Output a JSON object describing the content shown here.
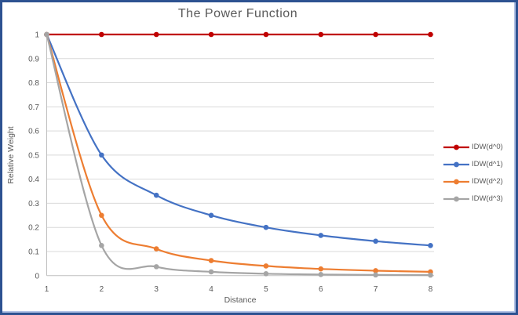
{
  "window": {
    "border_color": "#2d5291",
    "inner_edge_color": "#b3c3e6",
    "background": "#ffffff"
  },
  "chart_data": {
    "type": "line",
    "title": "The Power Function",
    "xlabel": "Distance",
    "ylabel": "Relative Weight",
    "x": [
      1,
      2,
      3,
      4,
      5,
      6,
      7,
      8
    ],
    "xticks": [
      {
        "v": 1,
        "label": "1"
      },
      {
        "v": 2,
        "label": "2"
      },
      {
        "v": 3,
        "label": "3"
      },
      {
        "v": 4,
        "label": "4"
      },
      {
        "v": 5,
        "label": "5"
      },
      {
        "v": 6,
        "label": "6"
      },
      {
        "v": 7,
        "label": "7"
      },
      {
        "v": 8,
        "label": "8"
      }
    ],
    "yticks": [
      {
        "v": 0,
        "label": "0"
      },
      {
        "v": 0.1,
        "label": "0.1"
      },
      {
        "v": 0.2,
        "label": "0.2"
      },
      {
        "v": 0.3,
        "label": "0.3"
      },
      {
        "v": 0.4,
        "label": "0.4"
      },
      {
        "v": 0.5,
        "label": "0.5"
      },
      {
        "v": 0.6,
        "label": "0.6"
      },
      {
        "v": 0.7,
        "label": "0.7"
      },
      {
        "v": 0.8,
        "label": "0.8"
      },
      {
        "v": 0.9,
        "label": "0.9"
      },
      {
        "v": 1,
        "label": "1"
      }
    ],
    "ylim": [
      0,
      1
    ],
    "xlim": [
      1,
      8
    ],
    "grid": "horizontal",
    "legend_position": "right",
    "series": [
      {
        "name": "IDW(d^0)",
        "color": "#c00000",
        "values": [
          1,
          1,
          1,
          1,
          1,
          1,
          1,
          1
        ]
      },
      {
        "name": "IDW(d^1)",
        "color": "#4472c4",
        "values": [
          1,
          0.5,
          0.3333,
          0.25,
          0.2,
          0.1667,
          0.1429,
          0.125
        ]
      },
      {
        "name": "IDW(d^2)",
        "color": "#ed7d31",
        "values": [
          1,
          0.25,
          0.1111,
          0.0625,
          0.04,
          0.0278,
          0.0204,
          0.0156
        ]
      },
      {
        "name": "IDW(d^3)",
        "color": "#a5a5a5",
        "values": [
          1,
          0.125,
          0.037,
          0.0156,
          0.008,
          0.0046,
          0.0029,
          0.002
        ]
      }
    ],
    "styles": {
      "grid_color": "#d9d9d9",
      "axis_color": "#bfbfbf",
      "text_color": "#595959",
      "line_width": 2.2,
      "marker_radius": 3.3
    }
  }
}
